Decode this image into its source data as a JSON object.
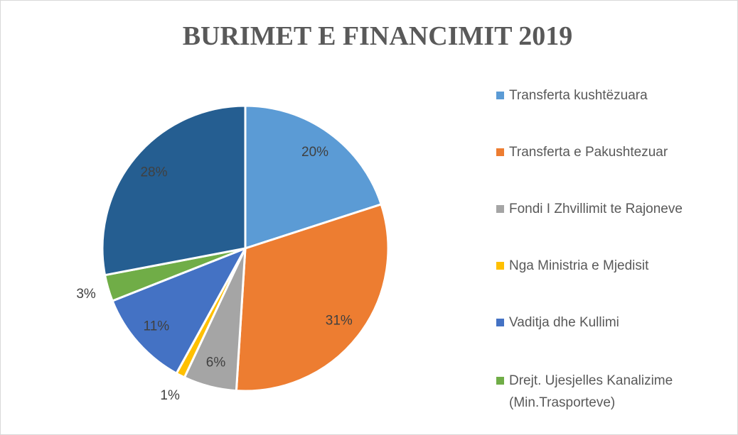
{
  "chart_data": {
    "type": "pie",
    "title": "BURIMET E FINANCIMIT 2019",
    "categories": [
      "Transferta kushtëzuara",
      "Transferta e Pakushtezuar",
      "Fondi I Zhvillimit te Rajoneve",
      "Nga Ministria e Mjedisit",
      "Vaditja dhe Kullimi",
      "Drejt. Ujesjelles  Kanalizime (Min.Trasporteve)",
      null
    ],
    "values": [
      20,
      31,
      6,
      1,
      11,
      3,
      28
    ],
    "value_labels": [
      "20%",
      "31%",
      "6%",
      "1%",
      "11%",
      "3%",
      "28%"
    ],
    "colors": [
      "#5b9bd5",
      "#ed7d31",
      "#a5a5a5",
      "#ffc000",
      "#4472c4",
      "#70ad47",
      "#255e91"
    ],
    "legend": "right"
  }
}
